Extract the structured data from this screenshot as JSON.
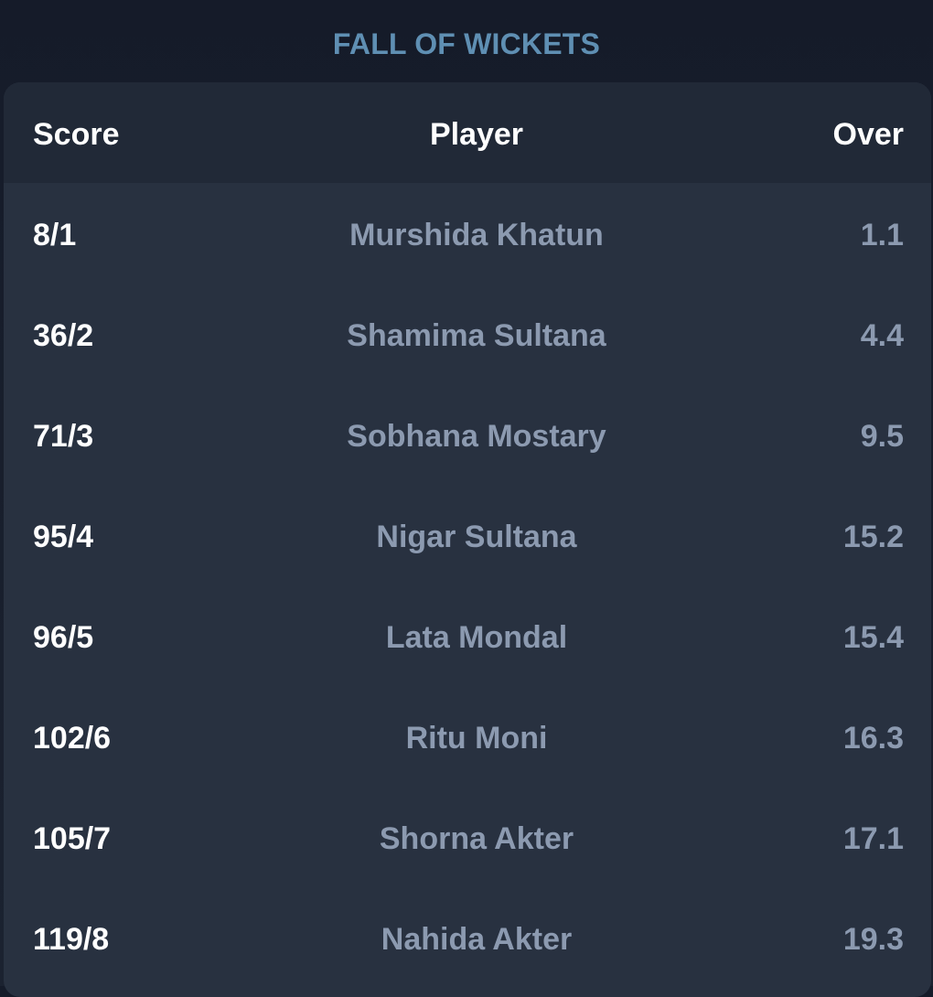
{
  "section": {
    "title": "FALL OF WICKETS"
  },
  "table": {
    "headers": {
      "score": "Score",
      "player": "Player",
      "over": "Over"
    },
    "rows": [
      {
        "score": "8/1",
        "player": "Murshida Khatun",
        "over": "1.1"
      },
      {
        "score": "36/2",
        "player": "Shamima Sultana",
        "over": "4.4"
      },
      {
        "score": "71/3",
        "player": "Sobhana Mostary",
        "over": "9.5"
      },
      {
        "score": "95/4",
        "player": "Nigar Sultana",
        "over": "15.2"
      },
      {
        "score": "96/5",
        "player": "Lata Mondal",
        "over": "15.4"
      },
      {
        "score": "102/6",
        "player": "Ritu Moni",
        "over": "16.3"
      },
      {
        "score": "105/7",
        "player": "Shorna Akter",
        "over": "17.1"
      },
      {
        "score": "119/8",
        "player": "Nahida Akter",
        "over": "19.3"
      }
    ]
  },
  "colors": {
    "background": "#171d2b",
    "card": "#283140",
    "header_row": "#212937",
    "title": "#5f8fb3",
    "header_text": "#ffffff",
    "score_text": "#ffffff",
    "muted_text": "#8c9ab0"
  }
}
